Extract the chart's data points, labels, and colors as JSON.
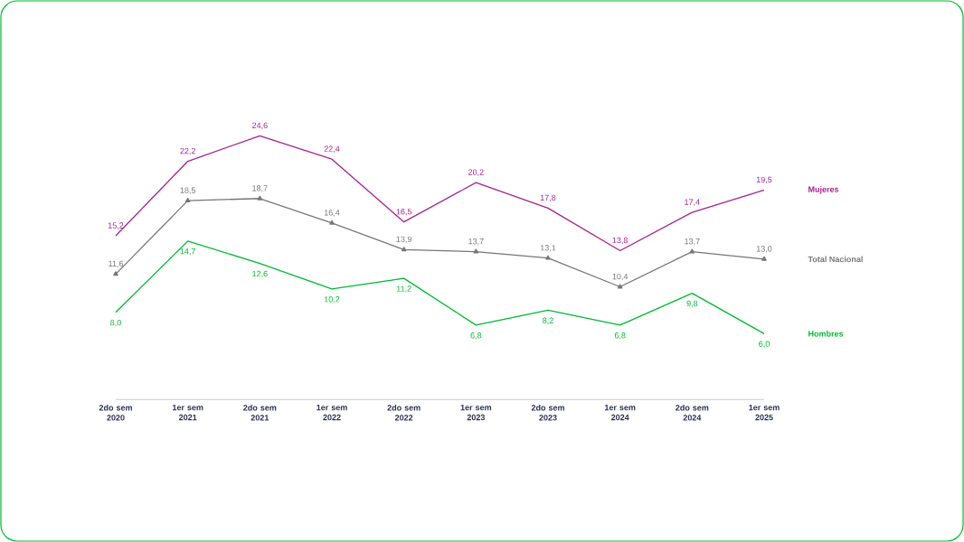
{
  "chart_data": {
    "type": "line",
    "categories": [
      "2do sem 2020",
      "1er sem 2021",
      "2do sem 2021",
      "1er sem 2022",
      "2do sem 2022",
      "1er sem 2023",
      "2do sem 2023",
      "1er sem 2024",
      "2do sem 2024",
      "1er sem 2025"
    ],
    "tick_labels": "x",
    "line_style": "solid",
    "series": [
      {
        "name": "Mujeres",
        "color": "#a3238e",
        "marker": "none",
        "values": [
          15.2,
          22.2,
          24.6,
          22.4,
          16.5,
          20.2,
          17.8,
          13.8,
          17.4,
          19.5
        ],
        "value_labels": [
          "15,2",
          "22,2",
          "24,6",
          "22,4",
          "16,5",
          "20,2",
          "17,8",
          "13,8",
          "17,4",
          "19,5"
        ]
      },
      {
        "name": "Total Nacional",
        "color": "#767676",
        "marker": "triangle",
        "values": [
          11.6,
          18.5,
          18.7,
          16.4,
          13.9,
          13.7,
          13.1,
          10.4,
          13.7,
          13.0
        ],
        "value_labels": [
          "11,6",
          "18,5",
          "18,7",
          "16,4",
          "13,9",
          "13,7",
          "13,1",
          "10,4",
          "13,7",
          "13,0"
        ]
      },
      {
        "name": "Hombres",
        "color": "#00b931",
        "marker": "none",
        "values": [
          8.0,
          14.7,
          12.6,
          10.2,
          11.2,
          6.8,
          8.2,
          6.8,
          9.8,
          6.0
        ],
        "value_labels": [
          "8,0",
          "14,7",
          "12,6",
          "10,2",
          "11,2",
          "6,8",
          "8,2",
          "6,8",
          "9,8",
          "6,0"
        ]
      }
    ]
  }
}
